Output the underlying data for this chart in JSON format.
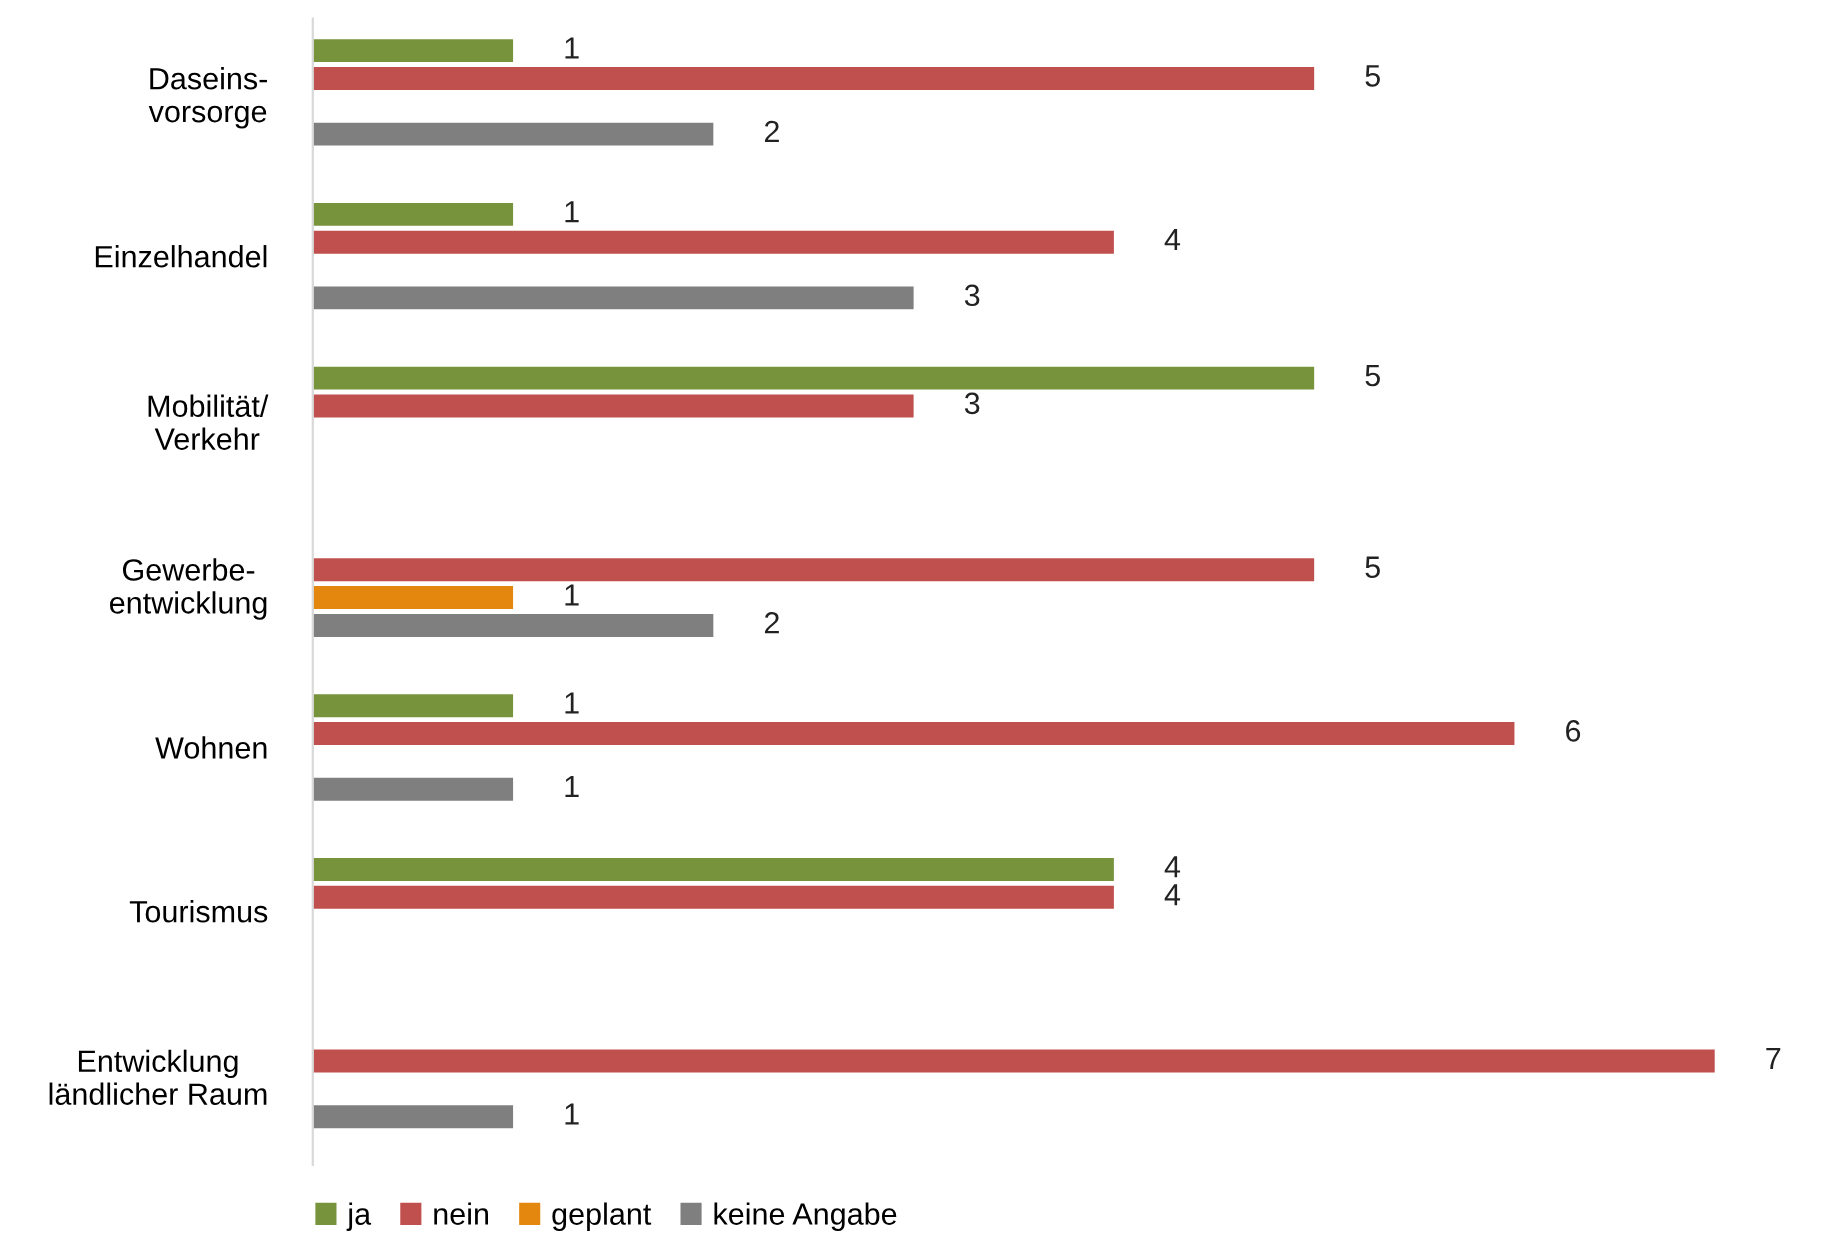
{
  "chart_data": {
    "type": "bar",
    "orientation": "horizontal",
    "categories": [
      "Daseins-\nvorsorge",
      "Einzelhandel",
      "Mobilität/\nVerkehr",
      "Gewerbe-\nentwicklung",
      "Wohnen",
      "Tourismus",
      "Entwicklung\nländlicher Raum"
    ],
    "series": [
      {
        "name": "ja",
        "color": "#77933c",
        "values": [
          1,
          1,
          5,
          null,
          1,
          4,
          null
        ]
      },
      {
        "name": "nein",
        "color": "#c0504d",
        "values": [
          5,
          4,
          3,
          5,
          6,
          4,
          7
        ]
      },
      {
        "name": "geplant",
        "color": "#e3870e",
        "values": [
          null,
          null,
          null,
          1,
          null,
          null,
          null
        ]
      },
      {
        "name": "keine Angabe",
        "color": "#7f7f7f",
        "values": [
          2,
          3,
          null,
          2,
          1,
          null,
          1
        ]
      }
    ],
    "data_labels": true,
    "legend": "bottom",
    "tick_labels": "y",
    "grid": false
  }
}
